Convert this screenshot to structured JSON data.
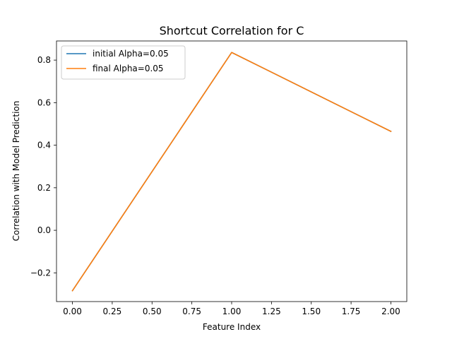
{
  "chart_data": {
    "type": "line",
    "title": "Shortcut Correlation for C",
    "xlabel": "Feature Index",
    "ylabel": "Correlation with Model Prediction",
    "xlim": [
      -0.1,
      2.1
    ],
    "ylim": [
      -0.335,
      0.89
    ],
    "x_ticks": [
      0.0,
      0.25,
      0.5,
      0.75,
      1.0,
      1.25,
      1.5,
      1.75,
      2.0
    ],
    "x_tick_labels": [
      "0.00",
      "0.25",
      "0.50",
      "0.75",
      "1.00",
      "1.25",
      "1.50",
      "1.75",
      "2.00"
    ],
    "y_ticks": [
      -0.2,
      0.0,
      0.2,
      0.4,
      0.6,
      0.8
    ],
    "y_tick_labels": [
      "−0.2",
      "0.0",
      "0.2",
      "0.4",
      "0.6",
      "0.8"
    ],
    "grid": false,
    "legend_position": "top-left",
    "x": [
      0,
      1,
      2
    ],
    "series": [
      {
        "name": "initial Alpha=0.05",
        "color": "#1f77b4",
        "values": [
          -0.284,
          0.836,
          0.465
        ]
      },
      {
        "name": "final Alpha=0.05",
        "color": "#ff7f0e",
        "values": [
          -0.284,
          0.836,
          0.465
        ]
      }
    ]
  }
}
